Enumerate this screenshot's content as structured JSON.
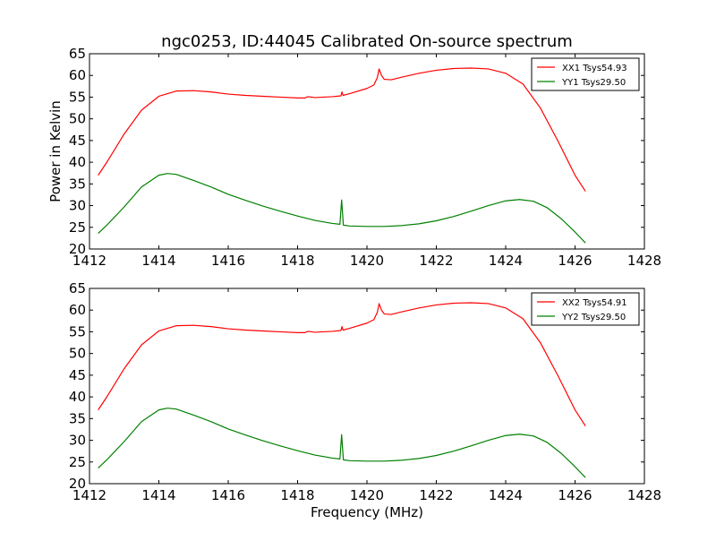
{
  "figure_title": "ngc0253, ID:44045 Calibrated On-source spectrum",
  "colors": {
    "xx": "#ff0000",
    "yy": "#008000"
  },
  "chart_data": [
    {
      "type": "line",
      "title": "ngc0253, ID:44045 Calibrated On-source spectrum",
      "xlabel": "",
      "ylabel": "Power in Kelvin",
      "xlim": [
        1412,
        1428
      ],
      "ylim": [
        20,
        65
      ],
      "xticks": [
        1412,
        1414,
        1416,
        1418,
        1420,
        1422,
        1424,
        1426,
        1428
      ],
      "yticks": [
        20,
        25,
        30,
        35,
        40,
        45,
        50,
        55,
        60,
        65
      ],
      "legend_position": "top-right",
      "series": [
        {
          "name": "XX1 Tsys54.93",
          "color": "#ff0000",
          "points": [
            [
              1412.25,
              37.0
            ],
            [
              1412.5,
              40.0
            ],
            [
              1413.0,
              46.5
            ],
            [
              1413.5,
              52.0
            ],
            [
              1414.0,
              55.2
            ],
            [
              1414.5,
              56.4
            ],
            [
              1415.0,
              56.5
            ],
            [
              1415.5,
              56.2
            ],
            [
              1416.0,
              55.7
            ],
            [
              1416.5,
              55.4
            ],
            [
              1417.0,
              55.2
            ],
            [
              1417.5,
              55.0
            ],
            [
              1418.0,
              54.8
            ],
            [
              1418.2,
              54.8
            ],
            [
              1418.3,
              55.1
            ],
            [
              1418.5,
              54.9
            ],
            [
              1419.0,
              55.1
            ],
            [
              1419.25,
              55.3
            ],
            [
              1419.28,
              56.2
            ],
            [
              1419.31,
              55.4
            ],
            [
              1419.5,
              55.8
            ],
            [
              1420.0,
              57.0
            ],
            [
              1420.2,
              57.8
            ],
            [
              1420.3,
              59.5
            ],
            [
              1420.35,
              61.5
            ],
            [
              1420.42,
              60.0
            ],
            [
              1420.5,
              59.1
            ],
            [
              1420.7,
              59.0
            ],
            [
              1421.0,
              59.6
            ],
            [
              1421.5,
              60.5
            ],
            [
              1422.0,
              61.2
            ],
            [
              1422.5,
              61.6
            ],
            [
              1423.0,
              61.7
            ],
            [
              1423.5,
              61.5
            ],
            [
              1424.0,
              60.5
            ],
            [
              1424.5,
              58.0
            ],
            [
              1425.0,
              52.5
            ],
            [
              1425.5,
              45.0
            ],
            [
              1426.0,
              37.0
            ],
            [
              1426.3,
              33.3
            ]
          ]
        },
        {
          "name": "YY1 Tsys29.50",
          "color": "#008000",
          "points": [
            [
              1412.25,
              23.6
            ],
            [
              1412.5,
              25.5
            ],
            [
              1413.0,
              29.7
            ],
            [
              1413.5,
              34.3
            ],
            [
              1414.0,
              37.0
            ],
            [
              1414.25,
              37.4
            ],
            [
              1414.5,
              37.2
            ],
            [
              1415.0,
              35.8
            ],
            [
              1415.5,
              34.3
            ],
            [
              1416.0,
              32.6
            ],
            [
              1416.5,
              31.2
            ],
            [
              1417.0,
              29.9
            ],
            [
              1417.5,
              28.7
            ],
            [
              1418.0,
              27.6
            ],
            [
              1418.5,
              26.6
            ],
            [
              1419.0,
              25.9
            ],
            [
              1419.22,
              25.7
            ],
            [
              1419.27,
              31.3
            ],
            [
              1419.32,
              25.5
            ],
            [
              1419.5,
              25.3
            ],
            [
              1420.0,
              25.2
            ],
            [
              1420.5,
              25.2
            ],
            [
              1421.0,
              25.4
            ],
            [
              1421.5,
              25.8
            ],
            [
              1422.0,
              26.5
            ],
            [
              1422.5,
              27.5
            ],
            [
              1423.0,
              28.7
            ],
            [
              1423.5,
              30.0
            ],
            [
              1424.0,
              31.1
            ],
            [
              1424.4,
              31.4
            ],
            [
              1424.8,
              31.0
            ],
            [
              1425.2,
              29.5
            ],
            [
              1425.6,
              27.0
            ],
            [
              1426.0,
              23.9
            ],
            [
              1426.3,
              21.4
            ]
          ]
        }
      ]
    },
    {
      "type": "line",
      "title": "",
      "xlabel": "Frequency (MHz)",
      "ylabel": "",
      "xlim": [
        1412,
        1428
      ],
      "ylim": [
        20,
        65
      ],
      "xticks": [
        1412,
        1414,
        1416,
        1418,
        1420,
        1422,
        1424,
        1426,
        1428
      ],
      "yticks": [
        20,
        25,
        30,
        35,
        40,
        45,
        50,
        55,
        60,
        65
      ],
      "legend_position": "top-right",
      "series": [
        {
          "name": "XX2 Tsys54.91",
          "color": "#ff0000",
          "points": [
            [
              1412.25,
              37.0
            ],
            [
              1412.5,
              40.0
            ],
            [
              1413.0,
              46.5
            ],
            [
              1413.5,
              52.0
            ],
            [
              1414.0,
              55.2
            ],
            [
              1414.5,
              56.4
            ],
            [
              1415.0,
              56.5
            ],
            [
              1415.5,
              56.2
            ],
            [
              1416.0,
              55.7
            ],
            [
              1416.5,
              55.4
            ],
            [
              1417.0,
              55.2
            ],
            [
              1417.5,
              55.0
            ],
            [
              1418.0,
              54.8
            ],
            [
              1418.2,
              54.8
            ],
            [
              1418.3,
              55.1
            ],
            [
              1418.5,
              54.9
            ],
            [
              1419.0,
              55.1
            ],
            [
              1419.25,
              55.3
            ],
            [
              1419.28,
              56.2
            ],
            [
              1419.31,
              55.4
            ],
            [
              1419.5,
              55.8
            ],
            [
              1420.0,
              57.0
            ],
            [
              1420.2,
              57.8
            ],
            [
              1420.3,
              59.5
            ],
            [
              1420.35,
              61.5
            ],
            [
              1420.42,
              60.0
            ],
            [
              1420.5,
              59.1
            ],
            [
              1420.7,
              59.0
            ],
            [
              1421.0,
              59.6
            ],
            [
              1421.5,
              60.5
            ],
            [
              1422.0,
              61.2
            ],
            [
              1422.5,
              61.6
            ],
            [
              1423.0,
              61.7
            ],
            [
              1423.5,
              61.5
            ],
            [
              1424.0,
              60.5
            ],
            [
              1424.5,
              58.0
            ],
            [
              1425.0,
              52.5
            ],
            [
              1425.5,
              45.0
            ],
            [
              1426.0,
              37.0
            ],
            [
              1426.3,
              33.3
            ]
          ]
        },
        {
          "name": "YY2 Tsys29.50",
          "color": "#008000",
          "points": [
            [
              1412.25,
              23.6
            ],
            [
              1412.5,
              25.5
            ],
            [
              1413.0,
              29.7
            ],
            [
              1413.5,
              34.3
            ],
            [
              1414.0,
              37.0
            ],
            [
              1414.25,
              37.4
            ],
            [
              1414.5,
              37.2
            ],
            [
              1415.0,
              35.8
            ],
            [
              1415.5,
              34.3
            ],
            [
              1416.0,
              32.6
            ],
            [
              1416.5,
              31.2
            ],
            [
              1417.0,
              29.9
            ],
            [
              1417.5,
              28.7
            ],
            [
              1418.0,
              27.6
            ],
            [
              1418.5,
              26.6
            ],
            [
              1419.0,
              25.9
            ],
            [
              1419.22,
              25.7
            ],
            [
              1419.27,
              31.3
            ],
            [
              1419.32,
              25.5
            ],
            [
              1419.5,
              25.3
            ],
            [
              1420.0,
              25.2
            ],
            [
              1420.5,
              25.2
            ],
            [
              1421.0,
              25.4
            ],
            [
              1421.5,
              25.8
            ],
            [
              1422.0,
              26.5
            ],
            [
              1422.5,
              27.5
            ],
            [
              1423.0,
              28.7
            ],
            [
              1423.5,
              30.0
            ],
            [
              1424.0,
              31.1
            ],
            [
              1424.4,
              31.4
            ],
            [
              1424.8,
              31.0
            ],
            [
              1425.2,
              29.5
            ],
            [
              1425.6,
              27.0
            ],
            [
              1426.0,
              23.9
            ],
            [
              1426.3,
              21.4
            ]
          ]
        }
      ]
    }
  ]
}
